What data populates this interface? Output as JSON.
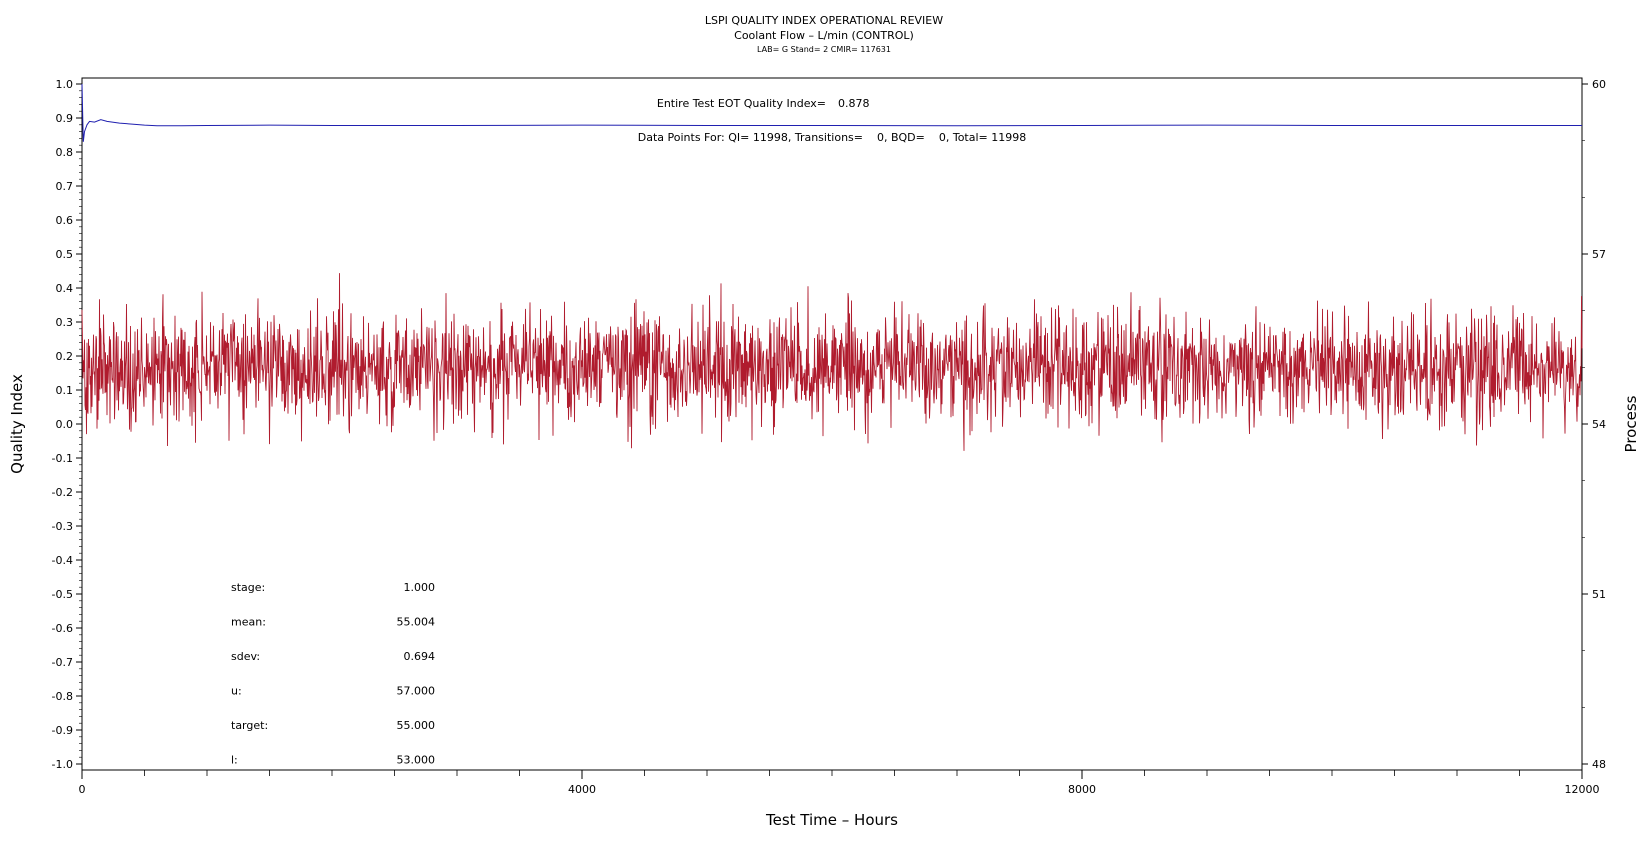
{
  "chart_data": {
    "type": "line",
    "title": "LSPI QUALITY INDEX OPERATIONAL REVIEW",
    "subtitle": "Coolant Flow – L/min (CONTROL)",
    "subtitle2": "LAB= G Stand= 2 CMIR= 117631",
    "xlabel": "Test Time – Hours",
    "ylabel_left": "Quality Index",
    "ylabel_right": "Process",
    "xlim": [
      0,
      12000
    ],
    "ylim_left": [
      -1.0,
      1.0
    ],
    "ylim_right": [
      48,
      60
    ],
    "x_ticks": [
      "0",
      "4000",
      "8000",
      "12000"
    ],
    "y_left_ticks": [
      "1.0",
      "0.9",
      "0.8",
      "0.7",
      "0.6",
      "0.5",
      "0.4",
      "0.3",
      "0.2",
      "0.1",
      "0.0",
      "-0.1",
      "-0.2",
      "-0.3",
      "-0.4",
      "-0.5",
      "-0.6",
      "-0.7",
      "-0.8",
      "-0.9",
      "-1.0"
    ],
    "y_right_ticks": [
      "60",
      "57",
      "54",
      "51",
      "48"
    ],
    "annotations": {
      "eot_label": "Entire Test EOT Quality Index=",
      "eot_value": "0.878",
      "points_text": "Data Points For: QI= 11998, Transitions=    0, BQD=    0, Total= 11998"
    },
    "series": [
      {
        "role": "quality-index",
        "color": "#2020b0",
        "x": [
          0,
          10,
          20,
          40,
          60,
          100,
          150,
          200,
          300,
          400,
          500,
          600,
          800,
          1000,
          1500,
          2000,
          3000,
          4000,
          5000,
          6000,
          7000,
          8000,
          9000,
          10000,
          11000,
          12000
        ],
        "y": [
          1.0,
          0.83,
          0.86,
          0.88,
          0.89,
          0.888,
          0.895,
          0.89,
          0.885,
          0.882,
          0.879,
          0.877,
          0.877,
          0.878,
          0.879,
          0.878,
          0.878,
          0.879,
          0.878,
          0.878,
          0.877,
          0.878,
          0.879,
          0.878,
          0.878,
          0.878
        ]
      },
      {
        "role": "process",
        "color": "#b01c2e",
        "points": 11998,
        "center": 55.004,
        "sdev": 0.694
      }
    ],
    "stats": [
      {
        "label": "stage:",
        "value": "1.000"
      },
      {
        "label": "mean:",
        "value": "55.004"
      },
      {
        "label": "sdev:",
        "value": "0.694"
      },
      {
        "label": "u:",
        "value": "57.000"
      },
      {
        "label": "target:",
        "value": "55.000"
      },
      {
        "label": "l:",
        "value": "53.000"
      }
    ]
  }
}
